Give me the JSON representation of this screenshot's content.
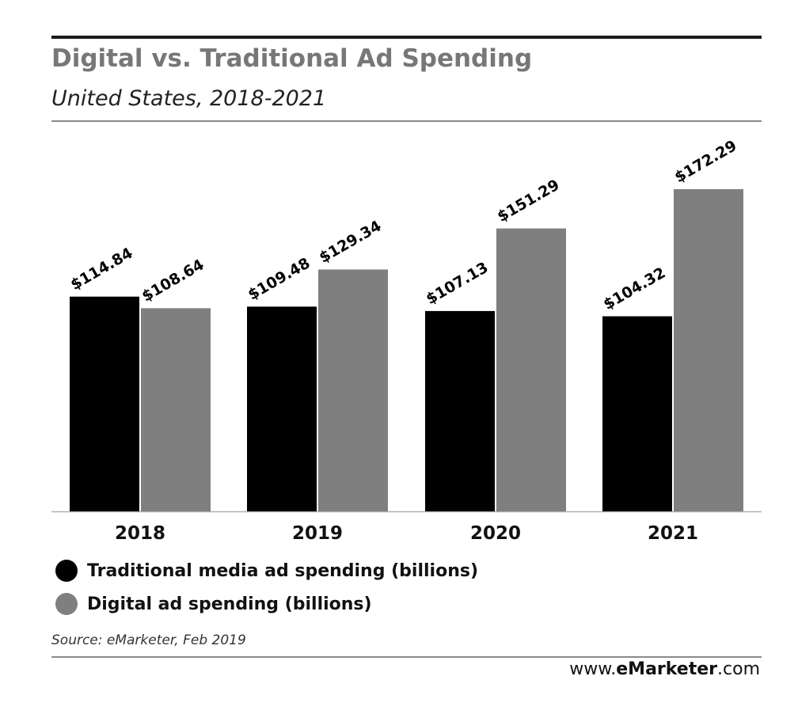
{
  "header": {
    "title": "Digital vs. Traditional Ad Spending",
    "subtitle": "United States, 2018-2021"
  },
  "colors": {
    "traditional": "#000000",
    "digital": "#7f7f7f",
    "title": "#777777"
  },
  "chart_data": {
    "type": "bar",
    "title": "Digital vs. Traditional Ad Spending",
    "subtitle": "United States, 2018-2021",
    "categories": [
      "2018",
      "2019",
      "2020",
      "2021"
    ],
    "series": [
      {
        "name": "Traditional media ad spending (billions)",
        "values": [
          114.84,
          109.48,
          107.13,
          104.32
        ],
        "labels": [
          "$114.84",
          "$109.48",
          "$107.13",
          "$104.32"
        ],
        "color": "#000000"
      },
      {
        "name": "Digital ad spending (billions)",
        "values": [
          108.64,
          129.34,
          151.29,
          172.29
        ],
        "labels": [
          "$108.64",
          "$129.34",
          "$151.29",
          "$172.29"
        ],
        "color": "#7f7f7f"
      }
    ],
    "xlabel": "",
    "ylabel": "",
    "ylim": [
      0,
      172.29
    ],
    "grid": false,
    "legend_position": "bottom-left"
  },
  "legend": {
    "items": [
      {
        "label": "Traditional media ad spending (billions)"
      },
      {
        "label": "Digital ad spending (billions)"
      }
    ]
  },
  "footer": {
    "source": "Source: eMarketer, Feb 2019",
    "brand_prefix": "www.",
    "brand_e": "e",
    "brand_name": "Marketer",
    "brand_suffix": ".com"
  }
}
